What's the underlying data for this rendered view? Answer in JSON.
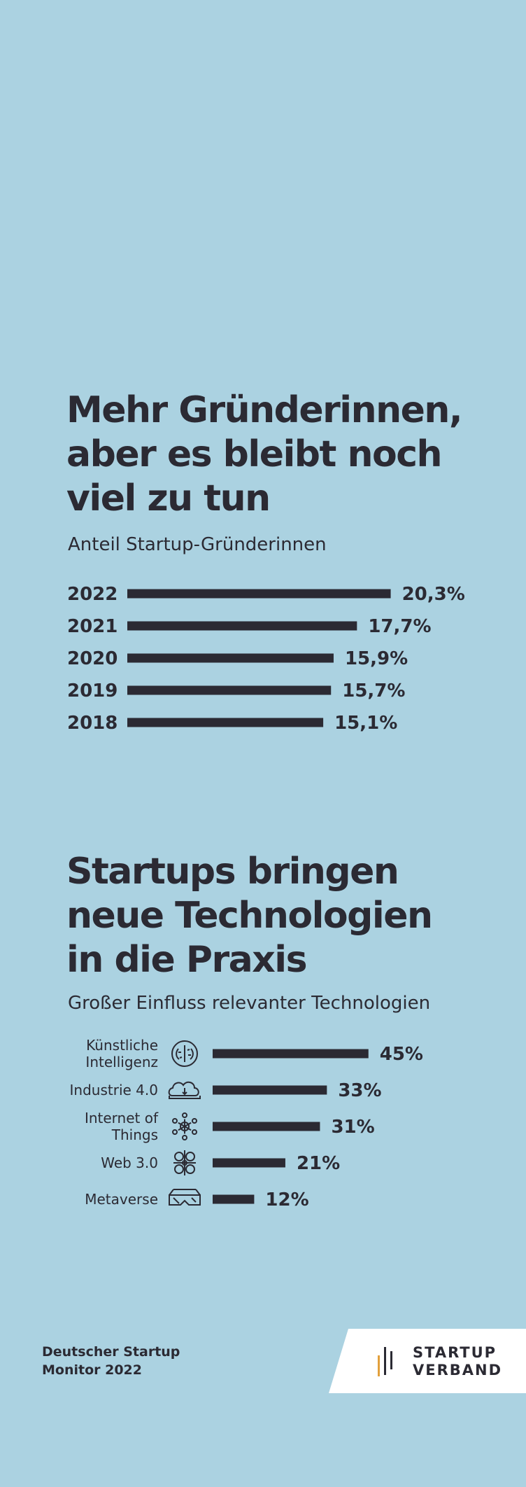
{
  "section1": {
    "title_lines": [
      "Mehr Gründerinnen,",
      "aber es bleibt noch",
      "viel zu tun"
    ],
    "subtitle": "Anteil Startup-Gründerinnen"
  },
  "section2": {
    "title_lines": [
      "Startups bringen",
      "neue Technologien",
      "in die Praxis"
    ],
    "subtitle": "Großer Einfluss relevanter Technologien"
  },
  "chart_data": [
    {
      "type": "bar",
      "orientation": "horizontal",
      "title": "Anteil Startup-Gründerinnen",
      "categories": [
        "2022",
        "2021",
        "2020",
        "2019",
        "2018"
      ],
      "values": [
        20.3,
        17.7,
        15.9,
        15.7,
        15.1
      ],
      "value_labels": [
        "20,3%",
        "17,7%",
        "15,9%",
        "15,7%",
        "15,1%"
      ],
      "bar_color": "#2b2a33",
      "grid": false
    },
    {
      "type": "bar",
      "orientation": "horizontal",
      "title": "Großer Einfluss relevanter Technologien",
      "categories": [
        [
          "Künstliche",
          "Intelligenz"
        ],
        [
          "Industrie 4.0"
        ],
        [
          "Internet of",
          "Things"
        ],
        [
          "Web 3.0"
        ],
        [
          "Metaverse"
        ]
      ],
      "icons": [
        "brain-icon",
        "cloud-icon",
        "network-icon",
        "people-network-icon",
        "vr-glasses-icon"
      ],
      "values": [
        45,
        33,
        31,
        21,
        12
      ],
      "value_labels": [
        "45%",
        "33%",
        "31%",
        "21%",
        "12%"
      ],
      "bar_color": "#2b2a33",
      "grid": false
    }
  ],
  "footer": {
    "lines": [
      "Deutscher Startup",
      "Monitor 2022"
    ]
  },
  "brand": {
    "lines": [
      "STARTUP",
      "VERBAND"
    ],
    "mark_colors": [
      "#e2a03c",
      "#2b2a33",
      "#2b2a33"
    ]
  },
  "colors": {
    "background": "#abd2e1",
    "text": "#2b2a33",
    "accent": "#e2a03c"
  }
}
